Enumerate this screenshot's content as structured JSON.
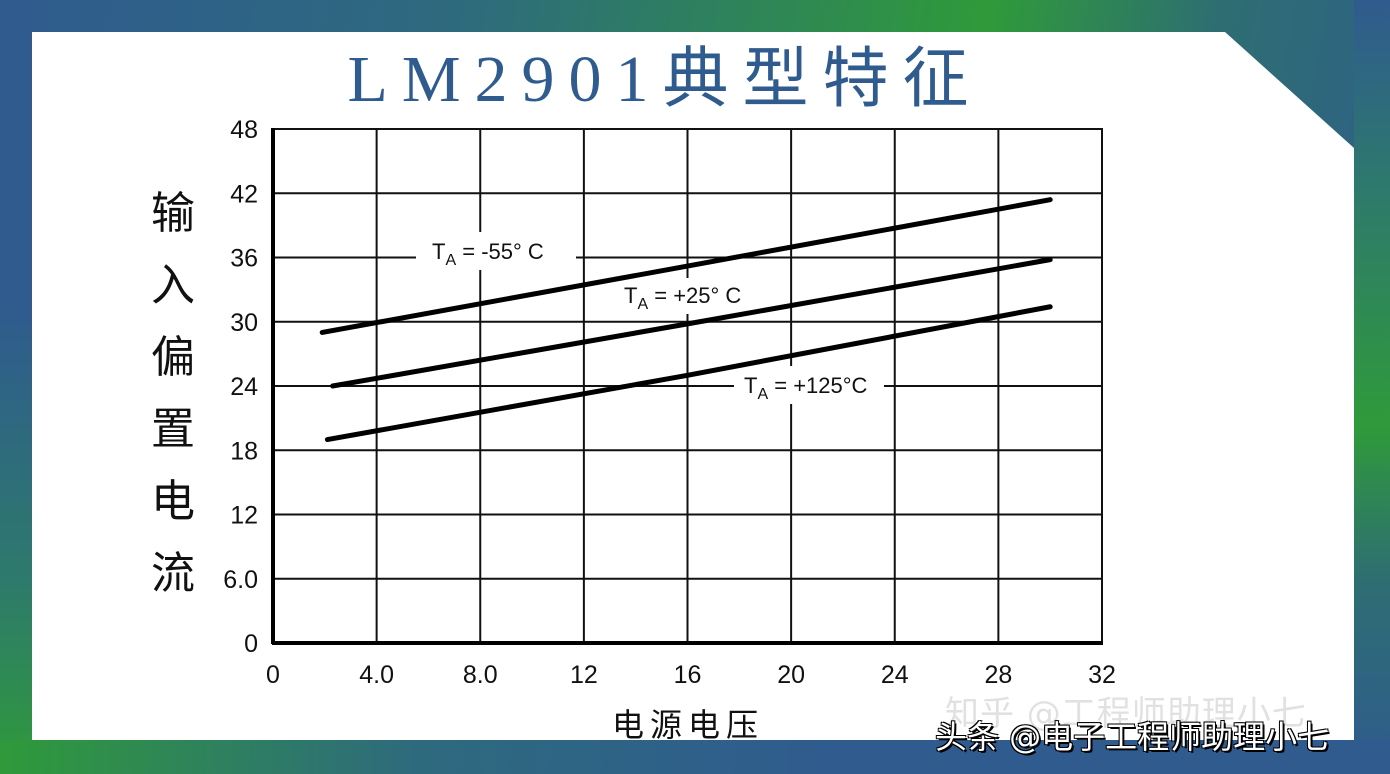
{
  "title": "LM2901典型特征",
  "colors": {
    "title": "#2f5b8e",
    "frame_blue": "#2f5b8e",
    "frame_green": "#2f9a3a",
    "panel": "#ffffff",
    "line": "#000000"
  },
  "axes": {
    "ylabel": "输入偏置电流",
    "ylabel_chars": [
      "输",
      "入",
      "偏",
      "置",
      "电",
      "流"
    ],
    "xlabel": "电源电压",
    "yticks": [
      "0",
      "6.0",
      "12",
      "18",
      "24",
      "30",
      "36",
      "42",
      "48"
    ],
    "xticks": [
      "0",
      "4.0",
      "8.0",
      "12",
      "16",
      "20",
      "24",
      "28",
      "32"
    ]
  },
  "labels": {
    "neg55": {
      "main": "T",
      "sub": "A",
      "rest": " = -55° C"
    },
    "pos25": {
      "main": "T",
      "sub": "A",
      "rest": " = +25° C"
    },
    "pos125": {
      "main": "T",
      "sub": "A",
      "rest": " = +125°C"
    }
  },
  "watermark": {
    "line1": "知乎 @工程师助理小七",
    "line2": "头条 @电子工程师助理小七"
  },
  "chart_data": {
    "type": "line",
    "title": "LM2901典型特征",
    "xlabel": "电源电压",
    "ylabel": "输入偏置电流",
    "xlim": [
      0,
      32
    ],
    "ylim": [
      0,
      48
    ],
    "xticks": [
      0,
      4,
      8,
      12,
      16,
      20,
      24,
      28,
      32
    ],
    "yticks": [
      0,
      6,
      12,
      18,
      24,
      30,
      36,
      42,
      48
    ],
    "grid": true,
    "legend_position": "inline annotations",
    "series": [
      {
        "name": "TA = -55° C",
        "x": [
          1.9,
          16,
          30
        ],
        "y": [
          29.0,
          35.2,
          41.4
        ]
      },
      {
        "name": "TA = +25° C",
        "x": [
          2.3,
          16,
          30
        ],
        "y": [
          24.0,
          29.8,
          35.8
        ]
      },
      {
        "name": "TA = +125°C",
        "x": [
          2.1,
          16,
          30
        ],
        "y": [
          19.0,
          25.0,
          31.4
        ]
      }
    ]
  }
}
